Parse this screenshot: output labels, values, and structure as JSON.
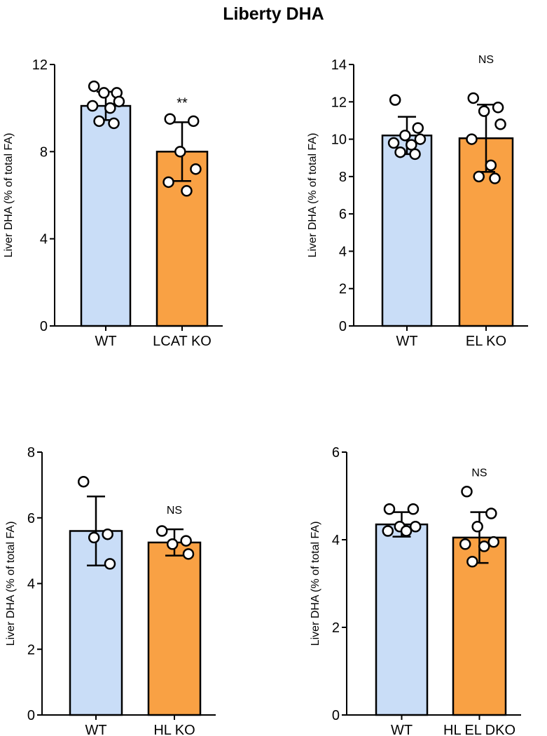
{
  "title": "Liberty DHA",
  "chart_data": [
    {
      "type": "bar",
      "ylabel": "Liver DHA (% of total FA)",
      "ylim": [
        0,
        12
      ],
      "yticks": [
        0,
        4,
        8,
        12
      ],
      "categories": [
        "WT",
        "LCAT KO"
      ],
      "values": [
        10.1,
        8.0
      ],
      "sd": [
        0.65,
        1.35
      ],
      "significance": "**",
      "points": [
        [
          11.0,
          10.7,
          10.7,
          10.3,
          10.1,
          10.0,
          9.4,
          9.3
        ],
        [
          9.5,
          9.4,
          8.0,
          7.2,
          6.6,
          6.2
        ]
      ]
    },
    {
      "type": "bar",
      "ylabel": "Liver DHA (% of total FA)",
      "ylim": [
        0,
        14
      ],
      "yticks": [
        0,
        2,
        4,
        6,
        8,
        10,
        12,
        14
      ],
      "categories": [
        "WT",
        "EL KO"
      ],
      "values": [
        10.2,
        10.05
      ],
      "sd": [
        1.0,
        1.8
      ],
      "significance": "NS",
      "points": [
        [
          12.1,
          10.6,
          10.2,
          10.0,
          9.8,
          9.7,
          9.3,
          9.2
        ],
        [
          12.2,
          11.7,
          11.5,
          10.8,
          10.0,
          8.6,
          8.0,
          7.9
        ]
      ]
    },
    {
      "type": "bar",
      "ylabel": "Liver DHA (% of total FA)",
      "ylim": [
        0,
        8
      ],
      "yticks": [
        0,
        2,
        4,
        6,
        8
      ],
      "categories": [
        "WT",
        "HL KO"
      ],
      "values": [
        5.6,
        5.25
      ],
      "sd": [
        1.05,
        0.4
      ],
      "significance": "NS",
      "points": [
        [
          7.1,
          5.5,
          5.4,
          4.6
        ],
        [
          5.6,
          5.3,
          5.2,
          4.9
        ]
      ]
    },
    {
      "type": "bar",
      "ylabel": "Liver DHA (% of total FA)",
      "ylim": [
        0,
        6
      ],
      "yticks": [
        0,
        2,
        4,
        6
      ],
      "categories": [
        "WT",
        "HL EL DKO"
      ],
      "values": [
        4.35,
        4.05
      ],
      "sd": [
        0.28,
        0.58
      ],
      "significance": "NS",
      "points": [
        [
          4.7,
          4.7,
          4.3,
          4.3,
          4.2,
          4.2
        ],
        [
          5.1,
          4.6,
          4.3,
          3.95,
          3.9,
          3.85,
          3.5
        ]
      ]
    }
  ],
  "colors": {
    "wt_bar": "#c9ddf7",
    "ko_bar": "#f9a144",
    "stroke": "#000000"
  }
}
